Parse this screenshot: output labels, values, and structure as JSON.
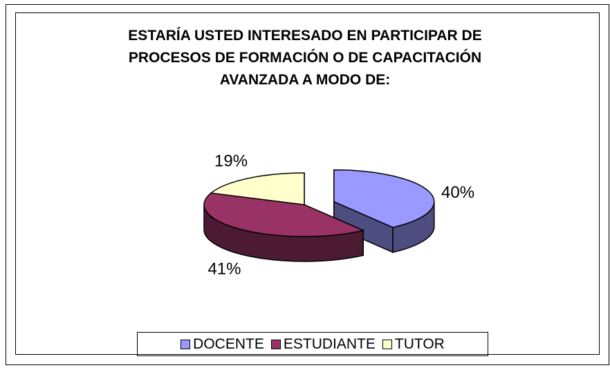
{
  "chart_data": {
    "type": "pie3d",
    "title": "ESTARÍA USTED INTERESADO EN PARTICIPAR DE PROCESOS DE FORMACIÓN O DE CAPACITACIÓN AVANZADA A MODO DE:",
    "categories": [
      "DOCENTE",
      "ESTUDIANTE",
      "TUTOR"
    ],
    "values": [
      40,
      41,
      19
    ],
    "value_labels": [
      "40%",
      "41%",
      "19%"
    ],
    "colors": [
      "#9999ff",
      "#993366",
      "#ffffcc"
    ],
    "legend": "bottom"
  }
}
